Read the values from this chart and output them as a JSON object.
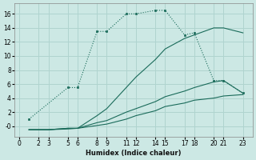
{
  "xlabel": "Humidex (Indice chaleur)",
  "bg_color": "#cce8e4",
  "grid_color": "#b0d4cf",
  "line_color": "#1a6b5a",
  "xlim": [
    -0.5,
    24
  ],
  "ylim": [
    -1.5,
    17.5
  ],
  "yticks": [
    0,
    2,
    4,
    6,
    8,
    10,
    12,
    14,
    16
  ],
  "ytick_labels": [
    "-0",
    "2",
    "4",
    "6",
    "8",
    "10",
    "12",
    "14",
    "16"
  ],
  "xticks": [
    0,
    2,
    3,
    5,
    6,
    8,
    9,
    11,
    12,
    14,
    15,
    17,
    18,
    20,
    21,
    23
  ],
  "curve1_x": [
    1,
    5,
    6,
    8,
    9,
    11,
    12,
    14,
    15,
    17,
    18,
    20,
    21,
    23
  ],
  "curve1_y": [
    1.0,
    5.5,
    5.5,
    13.5,
    13.5,
    16.0,
    16.0,
    16.5,
    16.5,
    13.0,
    13.3,
    6.5,
    6.5,
    4.7
  ],
  "curve2_x": [
    1,
    2,
    3,
    5,
    6,
    8,
    9,
    11,
    12,
    14,
    15,
    17,
    18,
    20,
    21,
    23
  ],
  "curve2_y": [
    -0.5,
    -0.5,
    -0.5,
    -0.3,
    -0.3,
    1.5,
    2.5,
    5.5,
    7.0,
    9.5,
    11.0,
    12.5,
    13.0,
    14.0,
    14.0,
    13.3
  ],
  "curve3_x": [
    1,
    2,
    3,
    5,
    6,
    8,
    9,
    11,
    12,
    14,
    15,
    17,
    18,
    20,
    21,
    23
  ],
  "curve3_y": [
    -0.5,
    -0.5,
    -0.5,
    -0.3,
    -0.3,
    0.5,
    0.8,
    2.0,
    2.5,
    3.5,
    4.2,
    5.0,
    5.5,
    6.3,
    6.5,
    4.7
  ],
  "curve4_x": [
    1,
    2,
    3,
    5,
    6,
    8,
    9,
    11,
    12,
    14,
    15,
    17,
    18,
    20,
    21,
    23
  ],
  "curve4_y": [
    -0.5,
    -0.5,
    -0.5,
    -0.4,
    -0.3,
    0.1,
    0.3,
    1.0,
    1.5,
    2.2,
    2.8,
    3.3,
    3.7,
    4.0,
    4.3,
    4.5
  ]
}
